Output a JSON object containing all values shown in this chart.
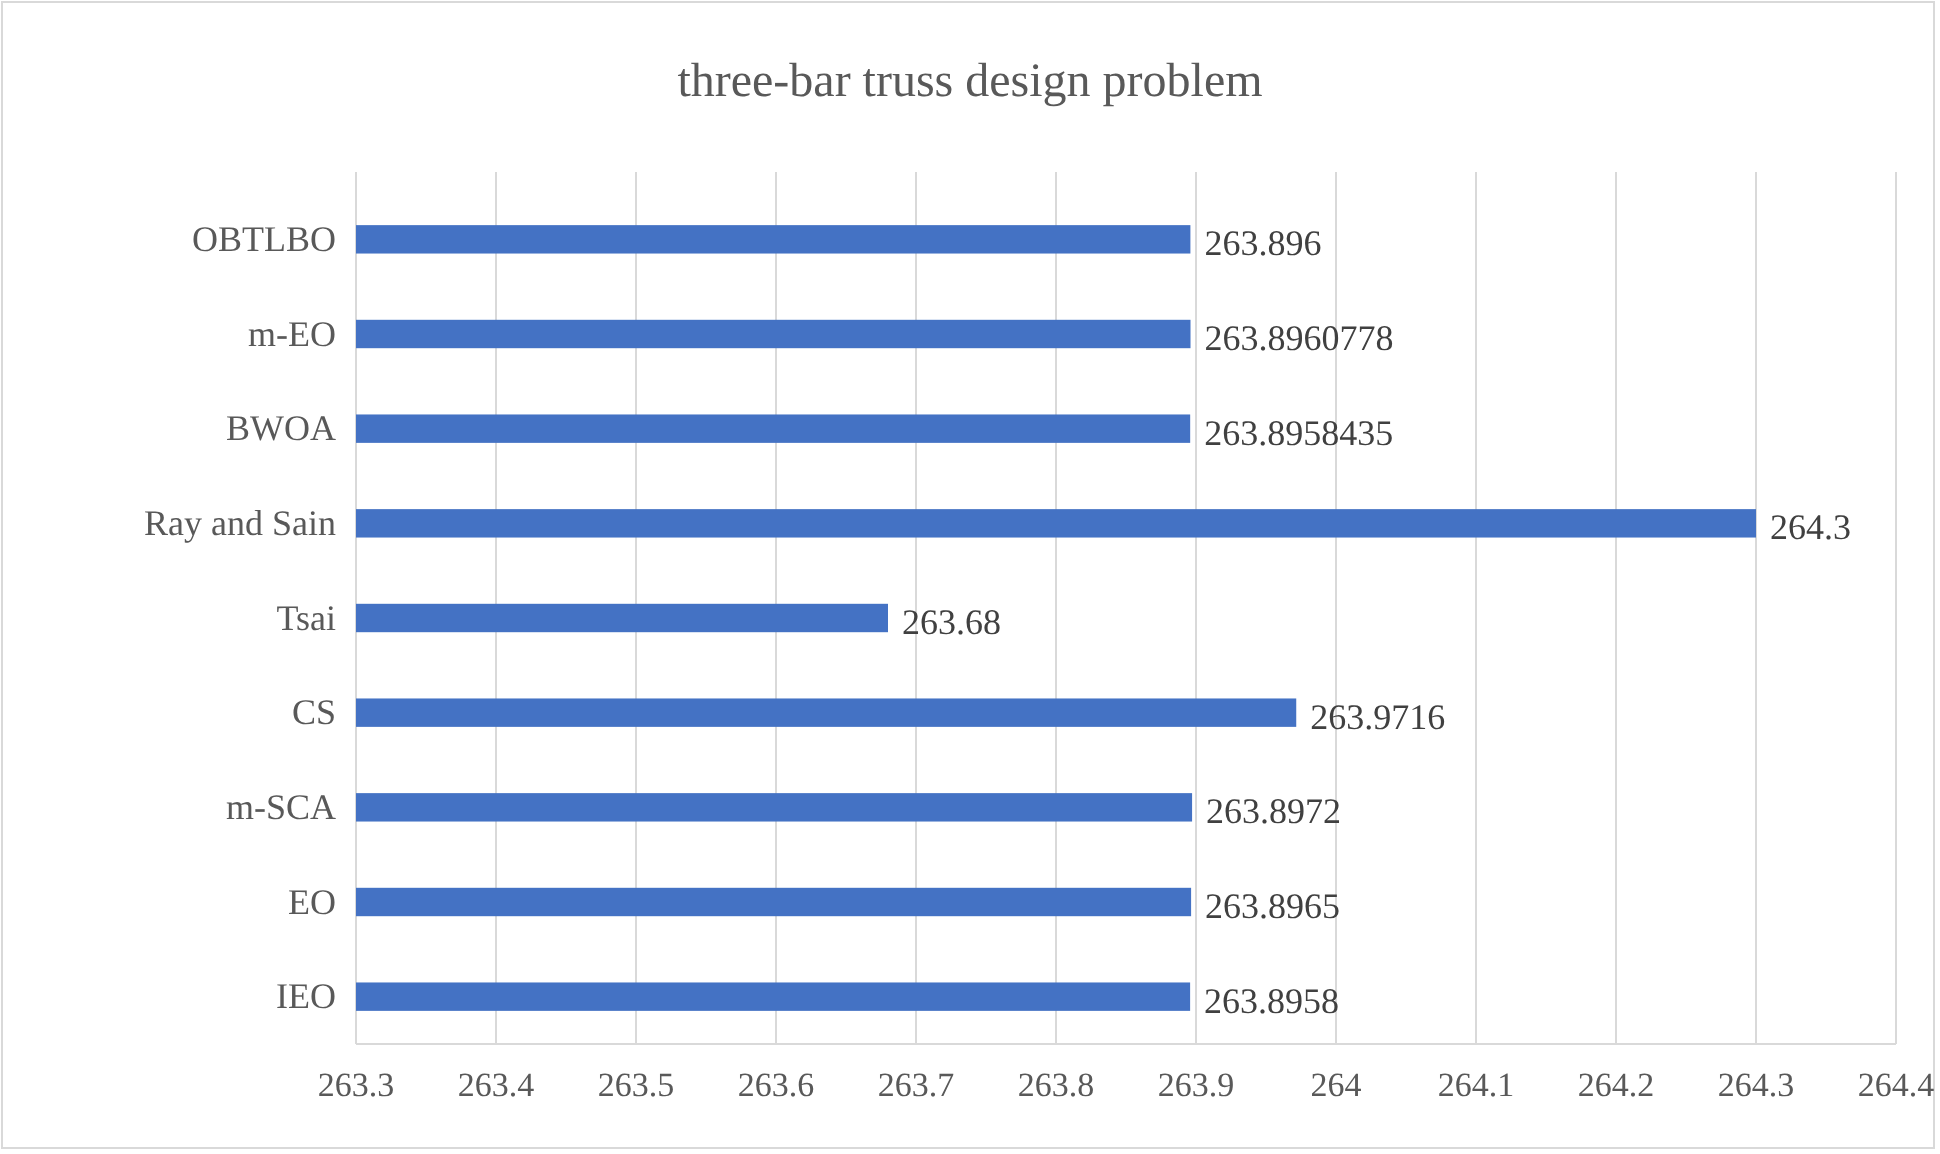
{
  "chart_data": {
    "type": "bar",
    "orientation": "horizontal",
    "title": "three-bar truss design problem",
    "categories": [
      "OBTLBO",
      "m-EO",
      "BWOA",
      "Ray and Sain",
      "Tsai",
      "CS",
      "m-SCA",
      "EO",
      "IEO"
    ],
    "values": [
      263.896,
      263.8960778,
      263.8958435,
      264.3,
      263.68,
      263.9716,
      263.8972,
      263.8965,
      263.8958
    ],
    "color": "#4472c4",
    "xlim": [
      263.3,
      264.4
    ],
    "xticks": [
      263.3,
      263.4,
      263.5,
      263.6,
      263.7,
      263.8,
      263.9,
      264,
      264.1,
      264.2,
      264.3,
      264.4
    ],
    "grid": "x",
    "data_labels": true
  }
}
